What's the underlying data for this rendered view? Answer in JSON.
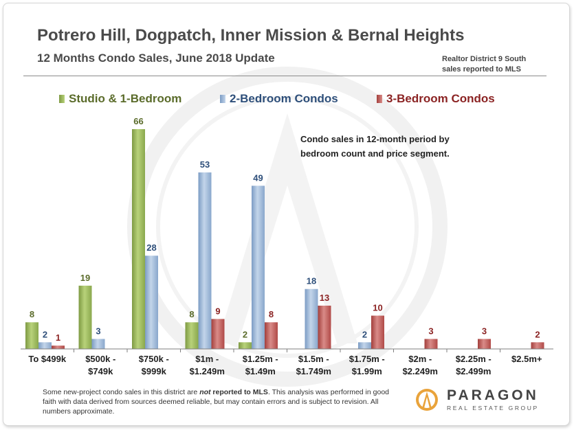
{
  "header": {
    "title": "Potrero Hill, Dogpatch, Inner Mission & Bernal Heights",
    "subtitle": "12 Months Condo Sales, June 2018 Update",
    "district_line1": "Realtor District  9 South",
    "district_line2": "sales reported to MLS"
  },
  "annotation": {
    "line1": "Condo sales in 12-month period by",
    "line2": "bedroom count and price segment."
  },
  "colors": {
    "studio": "#9bbb59",
    "two_bed": "#95b3d7",
    "three_bed": "#c0504d",
    "studio_label": "#5a6b2a",
    "two_bed_label": "#2e4f7a",
    "three_bed_label": "#8b2323"
  },
  "chart_data": {
    "type": "bar",
    "title": "12 Months Condo Sales, June 2018 Update",
    "categories": [
      [
        "To $499k"
      ],
      [
        "$500k -",
        "$749k"
      ],
      [
        "$750k -",
        "$999k"
      ],
      [
        "$1m -",
        "$1.249m"
      ],
      [
        "$1.25m -",
        "$1.49m"
      ],
      [
        "$1.5m -",
        "$1.749m"
      ],
      [
        "$1.75m -",
        "$1.99m"
      ],
      [
        "$2m -",
        "$2.249m"
      ],
      [
        "$2.25m -",
        "$2.499m"
      ],
      [
        "$2.5m+"
      ]
    ],
    "series": [
      {
        "name": "Studio & 1-Bedroom",
        "values": [
          8,
          19,
          66,
          8,
          2,
          null,
          null,
          null,
          null,
          null
        ]
      },
      {
        "name": "2-Bedroom Condos",
        "values": [
          2,
          3,
          28,
          53,
          49,
          18,
          2,
          null,
          null,
          null
        ]
      },
      {
        "name": "3-Bedroom Condos",
        "values": [
          1,
          null,
          null,
          9,
          8,
          13,
          10,
          3,
          3,
          2
        ]
      }
    ],
    "ylim": [
      0,
      70
    ],
    "xlabel": "",
    "ylabel": "",
    "legend": "top",
    "grid": false
  },
  "footnote": {
    "part1": "Some new-project condo sales in this district are ",
    "part_not": "not",
    "part2": " reported to MLS",
    "part3": ". This analysis was performed in good faith with data derived from sources deemed reliable, but may contain errors and is subject to revision. All numbers approximate."
  },
  "logo": {
    "name": "PARAGON",
    "tagline": "REAL ESTATE GROUP"
  }
}
